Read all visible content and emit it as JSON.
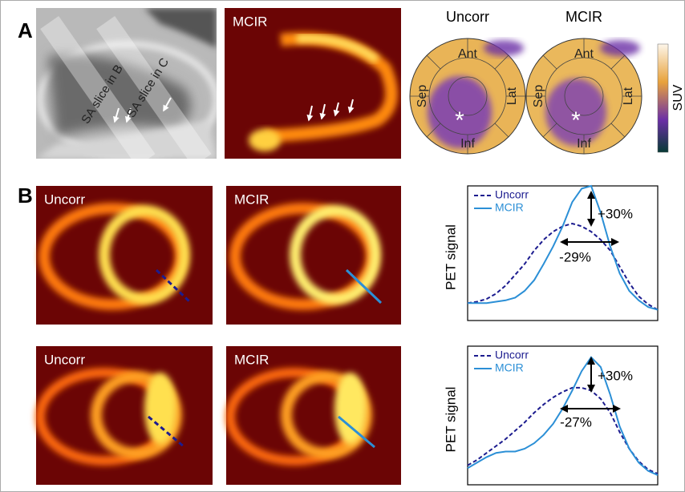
{
  "panel_a": {
    "label": "A",
    "slice_labels": [
      "SA slice in B",
      "SA slice in C"
    ],
    "heat_image_title": "MCIR",
    "polar_maps": [
      {
        "title": "Uncorr",
        "segments": [
          "Ant",
          "Sep",
          "Lat",
          "Inf"
        ],
        "marker": "*"
      },
      {
        "title": "MCIR",
        "segments": [
          "Ant",
          "Sep",
          "Lat",
          "Inf"
        ],
        "marker": "*"
      }
    ],
    "colorbar_label": "SUV"
  },
  "panel_b": {
    "label": "B",
    "rows": [
      {
        "images": [
          "Uncorr",
          "MCIR"
        ]
      },
      {
        "images": [
          "Uncorr",
          "MCIR"
        ]
      }
    ]
  },
  "chart_data": [
    {
      "type": "line",
      "y_label": "PET signal",
      "annotations": [
        "+30%",
        "-29%"
      ],
      "legend": "upper left",
      "xlim": [
        0,
        20
      ],
      "ylim": [
        0,
        1
      ],
      "x": [
        0,
        1,
        2,
        3,
        4,
        5,
        6,
        7,
        8,
        9,
        10,
        11,
        12,
        13,
        14,
        15,
        16,
        17,
        18,
        19,
        20
      ],
      "series": [
        {
          "name": "Uncorr",
          "color": "#1c1c8f",
          "dashed": true,
          "values": [
            0.13,
            0.14,
            0.16,
            0.2,
            0.26,
            0.34,
            0.42,
            0.52,
            0.6,
            0.66,
            0.7,
            0.72,
            0.7,
            0.66,
            0.6,
            0.52,
            0.4,
            0.28,
            0.18,
            0.12,
            0.08
          ]
        },
        {
          "name": "MCIR",
          "color": "#2b8fd6",
          "dashed": false,
          "values": [
            0.13,
            0.13,
            0.13,
            0.14,
            0.15,
            0.17,
            0.22,
            0.3,
            0.42,
            0.55,
            0.7,
            0.88,
            0.98,
            1.0,
            0.8,
            0.55,
            0.35,
            0.22,
            0.15,
            0.1,
            0.08
          ]
        }
      ]
    },
    {
      "type": "line",
      "y_label": "PET signal",
      "annotations": [
        "+30%",
        "-27%"
      ],
      "legend": "upper left",
      "xlim": [
        0,
        20
      ],
      "ylim": [
        0,
        1
      ],
      "x": [
        0,
        1,
        2,
        3,
        4,
        5,
        6,
        7,
        8,
        9,
        10,
        11,
        12,
        13,
        14,
        15,
        16,
        17,
        18,
        19,
        20
      ],
      "series": [
        {
          "name": "Uncorr",
          "color": "#1c1c8f",
          "dashed": true,
          "values": [
            0.14,
            0.18,
            0.23,
            0.28,
            0.33,
            0.39,
            0.45,
            0.52,
            0.58,
            0.63,
            0.67,
            0.7,
            0.7,
            0.68,
            0.62,
            0.52,
            0.38,
            0.26,
            0.17,
            0.11,
            0.08
          ]
        },
        {
          "name": "MCIR",
          "color": "#2b8fd6",
          "dashed": false,
          "values": [
            0.12,
            0.16,
            0.2,
            0.23,
            0.24,
            0.24,
            0.26,
            0.3,
            0.36,
            0.44,
            0.55,
            0.68,
            0.82,
            0.92,
            0.85,
            0.65,
            0.42,
            0.26,
            0.16,
            0.1,
            0.07
          ]
        }
      ]
    }
  ]
}
